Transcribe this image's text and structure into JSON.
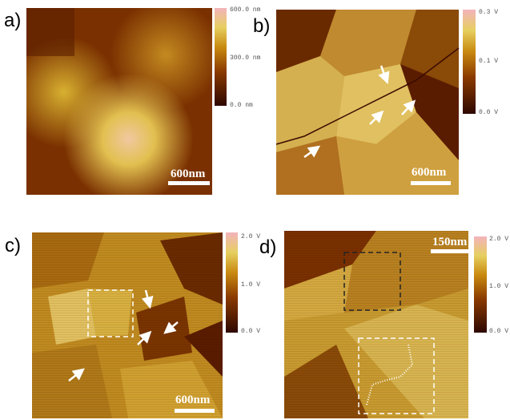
{
  "panels": [
    {
      "label": "a)",
      "scale_bar": "600nm",
      "colorbar": [
        "600.0 nm",
        "300.0 nm",
        "0.0 nm"
      ]
    },
    {
      "label": "b)",
      "scale_bar": "600nm",
      "colorbar": [
        "0.3 V",
        "0.1 V",
        "0.0 V"
      ]
    },
    {
      "label": "c)",
      "scale_bar": "600nm",
      "colorbar": [
        "2.0 V",
        "1.0 V",
        "0.0 V"
      ]
    },
    {
      "label": "d)",
      "scale_bar": "150nm",
      "colorbar": [
        "2.0 V",
        "1.0 V",
        "0.0 V"
      ]
    }
  ]
}
